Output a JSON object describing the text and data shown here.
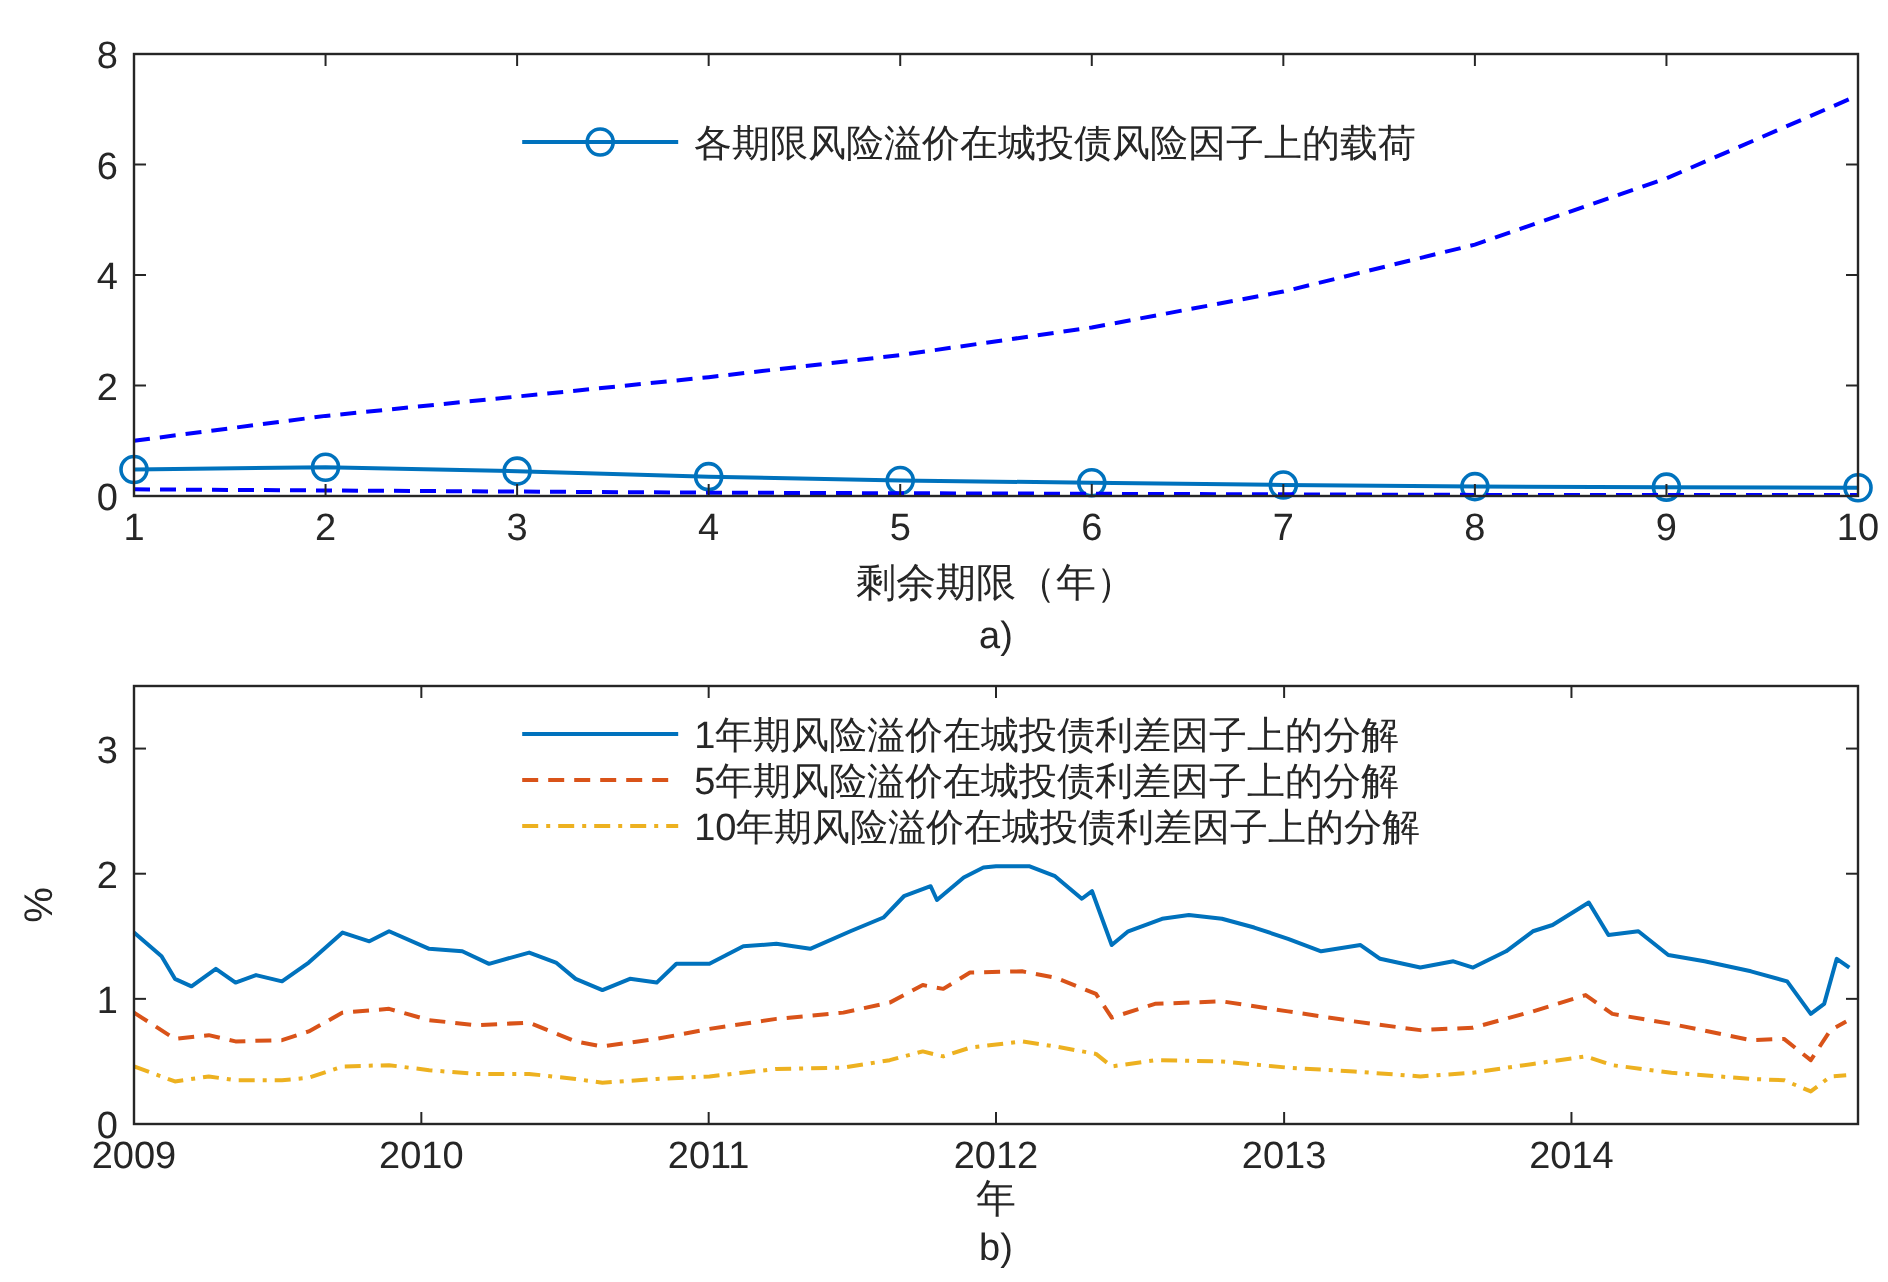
{
  "chart_data": [
    {
      "type": "line",
      "xlabel": "剩余期限（年）",
      "annotations": [
        "a)"
      ],
      "xlim": [
        1,
        10
      ],
      "xticks": [
        1,
        2,
        3,
        4,
        5,
        6,
        7,
        8,
        9,
        10
      ],
      "ylim": [
        0,
        8
      ],
      "yticks": [
        0,
        2,
        4,
        6,
        8
      ],
      "grid": false,
      "legend": "top",
      "x": [
        1,
        2,
        3,
        4,
        5,
        6,
        7,
        8,
        9,
        10
      ],
      "series": [
        {
          "name": "各期限风险溢价在城投债风险因子上的载荷",
          "color": "#0072bd",
          "marker": "circle",
          "line_style": "solid",
          "values": [
            0.48,
            0.52,
            0.45,
            0.35,
            0.28,
            0.24,
            0.2,
            0.17,
            0.16,
            0.15
          ]
        },
        {
          "color": "#0000ff",
          "marker": "none",
          "line_style": "dashed",
          "values": [
            1.0,
            1.45,
            1.8,
            2.15,
            2.55,
            3.05,
            3.7,
            4.55,
            5.75,
            7.25
          ]
        },
        {
          "color": "#0000ff",
          "marker": "none",
          "line_style": "dashed",
          "values": [
            0.12,
            0.1,
            0.08,
            0.06,
            0.05,
            0.04,
            0.03,
            0.02,
            0.02,
            0.02
          ]
        }
      ]
    },
    {
      "type": "line",
      "xlabel": "年",
      "ylabel": "%",
      "annotations": [
        "b)"
      ],
      "xlim": [
        "2009-01-01",
        "2014-12-31"
      ],
      "xticks": [
        {
          "value": "2009-01-01",
          "label": "2009"
        },
        {
          "value": "2010-01-01",
          "label": "2010"
        },
        {
          "value": "2011-01-01",
          "label": "2011"
        },
        {
          "value": "2012-01-01",
          "label": "2012"
        },
        {
          "value": "2013-01-01",
          "label": "2013"
        },
        {
          "value": "2014-01-01",
          "label": "2014"
        }
      ],
      "ylim": [
        0,
        3.5
      ],
      "yticks": [
        0,
        1,
        2,
        3
      ],
      "grid": false,
      "legend": "top",
      "series": [
        {
          "name": "1年期风险溢价在城投债利差因子上的分解",
          "color": "#0072bd",
          "marker": "none",
          "line_style": "solid",
          "x": [
            "2009-01-01",
            "2009-02-05",
            "2009-02-22",
            "2009-03-15",
            "2009-04-15",
            "2009-05-10",
            "2009-06-05",
            "2009-07-08",
            "2009-08-11",
            "2009-09-23",
            "2009-10-27",
            "2009-11-21",
            "2010-01-11",
            "2010-02-22",
            "2010-03-28",
            "2010-05-18",
            "2010-06-21",
            "2010-07-16",
            "2010-08-19",
            "2010-09-23",
            "2010-10-27",
            "2010-11-21",
            "2011-01-02",
            "2011-02-14",
            "2011-03-28",
            "2011-05-10",
            "2011-06-30",
            "2011-08-11",
            "2011-09-06",
            "2011-10-10",
            "2011-10-18",
            "2011-11-21",
            "2011-12-16",
            "2012-01-01",
            "2012-02-12",
            "2012-03-16",
            "2012-04-19",
            "2012-05-02",
            "2012-05-27",
            "2012-06-17",
            "2012-07-30",
            "2012-09-02",
            "2012-10-14",
            "2012-11-24",
            "2013-01-06",
            "2013-02-17",
            "2013-04-08",
            "2013-05-03",
            "2013-06-23",
            "2013-08-04",
            "2013-08-29",
            "2013-10-10",
            "2013-11-13",
            "2013-12-08",
            "2014-01-23",
            "2014-02-17",
            "2014-03-27",
            "2014-05-04",
            "2014-06-19",
            "2014-08-17",
            "2014-10-02",
            "2014-11-01",
            "2014-11-18",
            "2014-12-04",
            "2014-12-20"
          ],
          "values": [
            1.53,
            1.34,
            1.16,
            1.1,
            1.24,
            1.13,
            1.19,
            1.14,
            1.29,
            1.53,
            1.46,
            1.54,
            1.4,
            1.38,
            1.28,
            1.37,
            1.29,
            1.16,
            1.07,
            1.16,
            1.13,
            1.28,
            1.28,
            1.42,
            1.44,
            1.4,
            1.54,
            1.65,
            1.82,
            1.9,
            1.79,
            1.97,
            2.05,
            2.06,
            2.06,
            1.98,
            1.8,
            1.86,
            1.43,
            1.54,
            1.64,
            1.67,
            1.64,
            1.57,
            1.48,
            1.38,
            1.43,
            1.32,
            1.25,
            1.3,
            1.25,
            1.38,
            1.54,
            1.59,
            1.77,
            1.51,
            1.54,
            1.35,
            1.3,
            1.22,
            1.14,
            0.88,
            0.96,
            1.32,
            1.25
          ]
        },
        {
          "name": "5年期风险溢价在城投债利差因子上的分解",
          "color": "#d95319",
          "marker": "none",
          "line_style": "dashed",
          "x": [
            "2009-01-01",
            "2009-02-22",
            "2009-04-06",
            "2009-05-10",
            "2009-07-08",
            "2009-08-11",
            "2009-09-23",
            "2009-11-21",
            "2010-01-11",
            "2010-03-11",
            "2010-05-18",
            "2010-07-16",
            "2010-08-19",
            "2010-10-27",
            "2011-01-02",
            "2011-03-28",
            "2011-06-21",
            "2011-08-19",
            "2011-09-30",
            "2011-10-26",
            "2011-11-29",
            "2012-02-03",
            "2012-03-16",
            "2012-05-07",
            "2012-05-27",
            "2012-07-21",
            "2012-10-14",
            "2013-01-06",
            "2013-03-31",
            "2013-06-23",
            "2013-08-29",
            "2013-11-13",
            "2014-01-19",
            "2014-02-22",
            "2014-05-08",
            "2014-08-17",
            "2014-09-28",
            "2014-11-01",
            "2014-11-26",
            "2014-12-16"
          ],
          "values": [
            0.89,
            0.68,
            0.71,
            0.66,
            0.67,
            0.74,
            0.89,
            0.92,
            0.83,
            0.79,
            0.81,
            0.66,
            0.62,
            0.68,
            0.76,
            0.84,
            0.89,
            0.97,
            1.11,
            1.08,
            1.21,
            1.22,
            1.17,
            1.04,
            0.85,
            0.96,
            0.98,
            0.9,
            0.82,
            0.75,
            0.77,
            0.9,
            1.03,
            0.88,
            0.8,
            0.67,
            0.68,
            0.51,
            0.75,
            0.82
          ]
        },
        {
          "name": "10年期风险溢价在城投债利差因子上的分解",
          "color": "#edb120",
          "marker": "none",
          "line_style": "dashdot",
          "x": [
            "2009-01-01",
            "2009-02-22",
            "2009-04-06",
            "2009-05-10",
            "2009-07-08",
            "2009-08-11",
            "2009-09-23",
            "2009-11-21",
            "2010-01-11",
            "2010-03-11",
            "2010-05-18",
            "2010-07-16",
            "2010-08-19",
            "2010-10-27",
            "2011-01-02",
            "2011-03-28",
            "2011-06-21",
            "2011-08-19",
            "2011-09-30",
            "2011-10-26",
            "2011-11-29",
            "2012-02-03",
            "2012-03-16",
            "2012-05-07",
            "2012-05-27",
            "2012-07-21",
            "2012-10-14",
            "2013-01-06",
            "2013-03-31",
            "2013-06-23",
            "2013-08-29",
            "2013-11-13",
            "2014-01-19",
            "2014-02-22",
            "2014-05-08",
            "2014-08-17",
            "2014-09-28",
            "2014-11-01",
            "2014-11-26",
            "2014-12-16"
          ],
          "values": [
            0.46,
            0.34,
            0.38,
            0.35,
            0.35,
            0.37,
            0.46,
            0.47,
            0.43,
            0.4,
            0.4,
            0.36,
            0.33,
            0.36,
            0.38,
            0.44,
            0.45,
            0.51,
            0.58,
            0.54,
            0.61,
            0.66,
            0.62,
            0.56,
            0.46,
            0.51,
            0.5,
            0.45,
            0.42,
            0.38,
            0.41,
            0.48,
            0.54,
            0.47,
            0.41,
            0.36,
            0.35,
            0.26,
            0.38,
            0.39
          ]
        }
      ]
    }
  ]
}
